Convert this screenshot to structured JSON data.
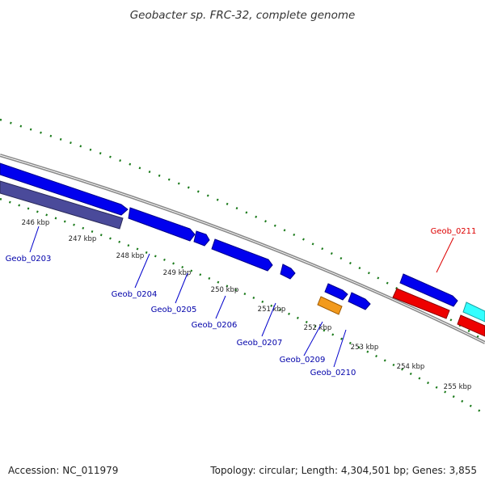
{
  "title": "Geobacter sp. FRC-32, complete genome",
  "accession": "Accession: NC_011979",
  "topology": "Topology: circular; Length: 4,304,501 bp; Genes: 3,855",
  "colors": {
    "backbone": "#888888",
    "tick": "#1a7a1a",
    "forward_gene": "#0000ee",
    "reverse_gene_dark": "#4a4a9a",
    "orange_gene": "#f29a1d",
    "red_gene": "#ee0000",
    "cyan_gene": "#33ffff",
    "blue_label": "#0000aa",
    "red_label": "#dd0000"
  },
  "ticks": [
    "246 kbp",
    "247 kbp",
    "248 kbp",
    "249 kbp",
    "250 kbp",
    "251 kbp",
    "252 kbp",
    "253 kbp",
    "254 kbp",
    "255 kbp"
  ],
  "gene_labels": [
    {
      "name": "Geob_0203",
      "color": "blue"
    },
    {
      "name": "Geob_0204",
      "color": "blue"
    },
    {
      "name": "Geob_0205",
      "color": "blue"
    },
    {
      "name": "Geob_0206",
      "color": "blue"
    },
    {
      "name": "Geob_0207",
      "color": "blue"
    },
    {
      "name": "Geob_0209",
      "color": "blue"
    },
    {
      "name": "Geob_0210",
      "color": "blue"
    },
    {
      "name": "Geob_0211",
      "color": "red"
    }
  ]
}
